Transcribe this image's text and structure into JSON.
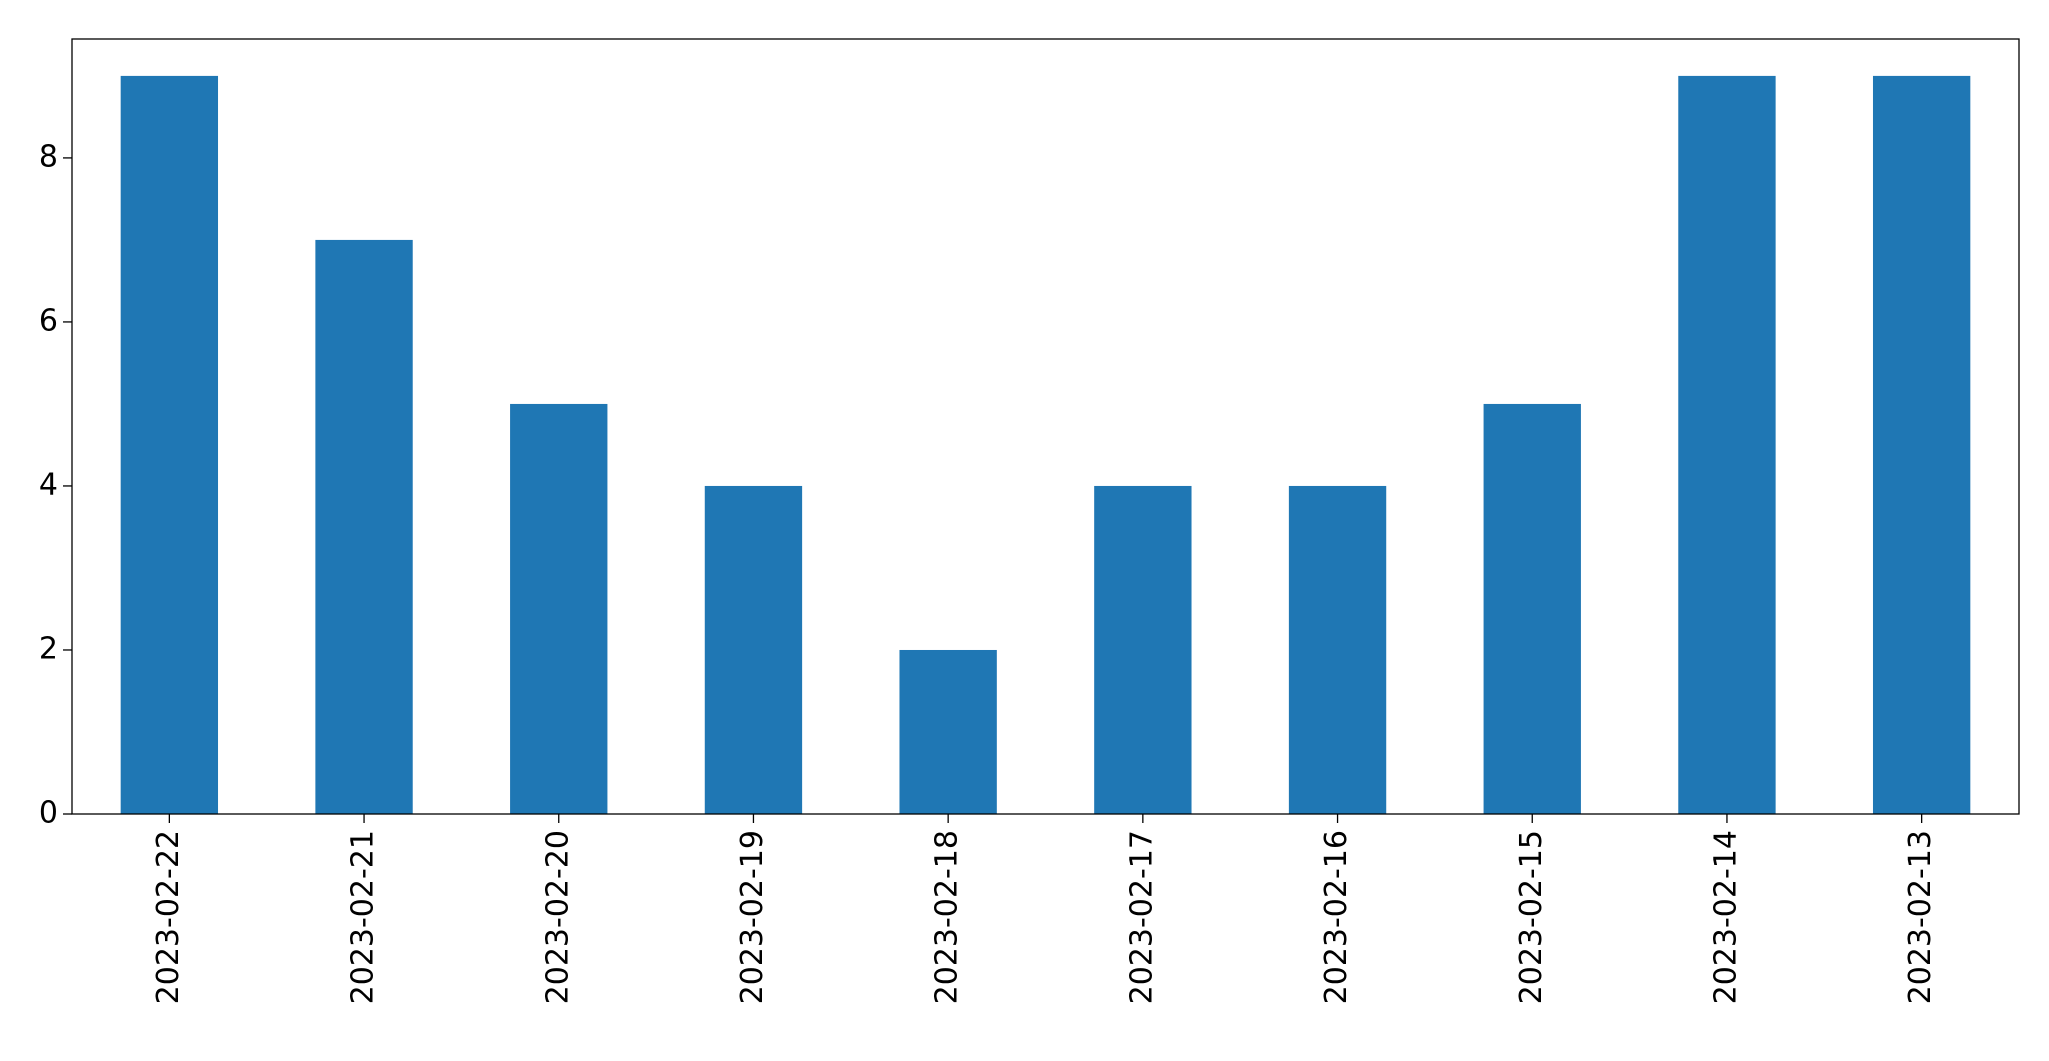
{
  "chart_data": {
    "type": "bar",
    "categories": [
      "2023-02-22",
      "2023-02-21",
      "2023-02-20",
      "2023-02-19",
      "2023-02-18",
      "2023-02-17",
      "2023-02-16",
      "2023-02-15",
      "2023-02-14",
      "2023-02-13"
    ],
    "values": [
      9,
      7,
      5,
      4,
      2,
      4,
      4,
      5,
      9,
      9
    ],
    "color": "#1f77b4",
    "ylim": [
      0,
      9.45
    ],
    "yticks": [
      0,
      2,
      4,
      6,
      8
    ],
    "grid": false
  }
}
